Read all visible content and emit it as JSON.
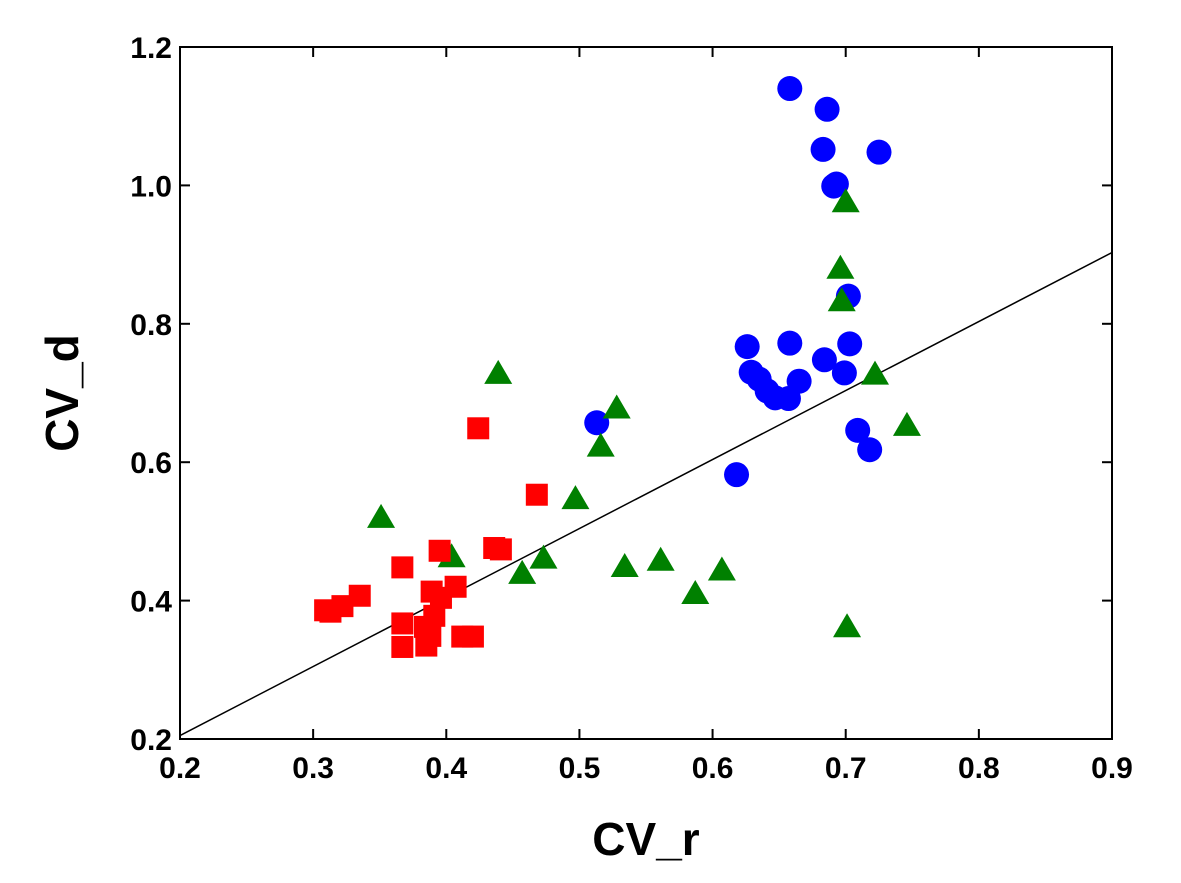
{
  "chart_data": {
    "type": "scatter",
    "title": "",
    "xlabel": "CV_r",
    "ylabel": "CV_d",
    "xlim": [
      0.2,
      0.9
    ],
    "ylim": [
      0.2,
      1.2
    ],
    "xticks": [
      "0.2",
      "0.3",
      "0.4",
      "0.5",
      "0.6",
      "0.7",
      "0.8",
      "0.9"
    ],
    "yticks": [
      "0.2",
      "0.4",
      "0.6",
      "0.8",
      "1.0",
      "1.2"
    ],
    "grid": false,
    "legend": "none",
    "series": [
      {
        "marker": "circle",
        "color": "#0000ff",
        "points": [
          [
            0.658,
            1.14
          ],
          [
            0.686,
            1.11
          ],
          [
            0.683,
            1.052
          ],
          [
            0.725,
            1.048
          ],
          [
            0.693,
            1.002
          ],
          [
            0.691,
            0.999
          ],
          [
            0.702,
            0.84
          ],
          [
            0.626,
            0.767
          ],
          [
            0.658,
            0.772
          ],
          [
            0.703,
            0.771
          ],
          [
            0.684,
            0.748
          ],
          [
            0.629,
            0.73
          ],
          [
            0.699,
            0.729
          ],
          [
            0.635,
            0.72
          ],
          [
            0.641,
            0.703
          ],
          [
            0.665,
            0.717
          ],
          [
            0.647,
            0.693
          ],
          [
            0.657,
            0.692
          ],
          [
            0.709,
            0.646
          ],
          [
            0.718,
            0.618
          ],
          [
            0.513,
            0.657
          ],
          [
            0.618,
            0.582
          ]
        ]
      },
      {
        "marker": "triangle",
        "color": "#008000",
        "points": [
          [
            0.7,
            0.975
          ],
          [
            0.696,
            0.879
          ],
          [
            0.697,
            0.832
          ],
          [
            0.439,
            0.727
          ],
          [
            0.722,
            0.726
          ],
          [
            0.528,
            0.677
          ],
          [
            0.746,
            0.652
          ],
          [
            0.516,
            0.622
          ],
          [
            0.497,
            0.546
          ],
          [
            0.351,
            0.519
          ],
          [
            0.404,
            0.462
          ],
          [
            0.473,
            0.46
          ],
          [
            0.561,
            0.457
          ],
          [
            0.534,
            0.448
          ],
          [
            0.607,
            0.443
          ],
          [
            0.457,
            0.438
          ],
          [
            0.587,
            0.409
          ],
          [
            0.701,
            0.361
          ]
        ]
      },
      {
        "marker": "square",
        "color": "#ff0000",
        "points": [
          [
            0.424,
            0.649
          ],
          [
            0.468,
            0.553
          ],
          [
            0.395,
            0.472
          ],
          [
            0.436,
            0.476
          ],
          [
            0.441,
            0.474
          ],
          [
            0.367,
            0.448
          ],
          [
            0.407,
            0.42
          ],
          [
            0.335,
            0.407
          ],
          [
            0.389,
            0.413
          ],
          [
            0.396,
            0.404
          ],
          [
            0.322,
            0.392
          ],
          [
            0.309,
            0.386
          ],
          [
            0.313,
            0.384
          ],
          [
            0.391,
            0.378
          ],
          [
            0.367,
            0.367
          ],
          [
            0.384,
            0.362
          ],
          [
            0.388,
            0.349
          ],
          [
            0.412,
            0.348
          ],
          [
            0.42,
            0.348
          ],
          [
            0.367,
            0.333
          ],
          [
            0.385,
            0.335
          ]
        ]
      }
    ],
    "fit_line": {
      "x": [
        0.2,
        0.9
      ],
      "y": [
        0.205,
        0.903
      ],
      "color": "#000000"
    }
  }
}
